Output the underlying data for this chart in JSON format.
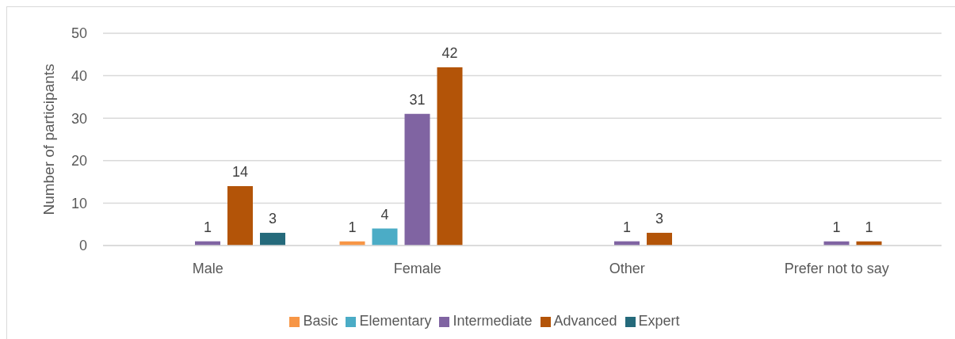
{
  "chart_data": {
    "type": "bar",
    "ylabel": "Number of participants",
    "categories": [
      "Male",
      "Female",
      "Other",
      "Prefer not to say"
    ],
    "series": [
      {
        "name": "Basic",
        "color": "#f79646",
        "values": [
          null,
          1,
          null,
          null
        ]
      },
      {
        "name": "Elementary",
        "color": "#4bacc6",
        "values": [
          null,
          4,
          null,
          null
        ]
      },
      {
        "name": "Intermediate",
        "color": "#8064a2",
        "values": [
          1,
          31,
          1,
          1
        ]
      },
      {
        "name": "Advanced",
        "color": "#b35408",
        "values": [
          14,
          42,
          3,
          1
        ]
      },
      {
        "name": "Expert",
        "color": "#256a7b",
        "values": [
          3,
          null,
          null,
          null
        ]
      }
    ],
    "ylim": [
      0,
      50
    ],
    "yticks": [
      0,
      10,
      20,
      30,
      40,
      50
    ],
    "grid": "y",
    "legend": "bottom",
    "data_labels": true
  }
}
